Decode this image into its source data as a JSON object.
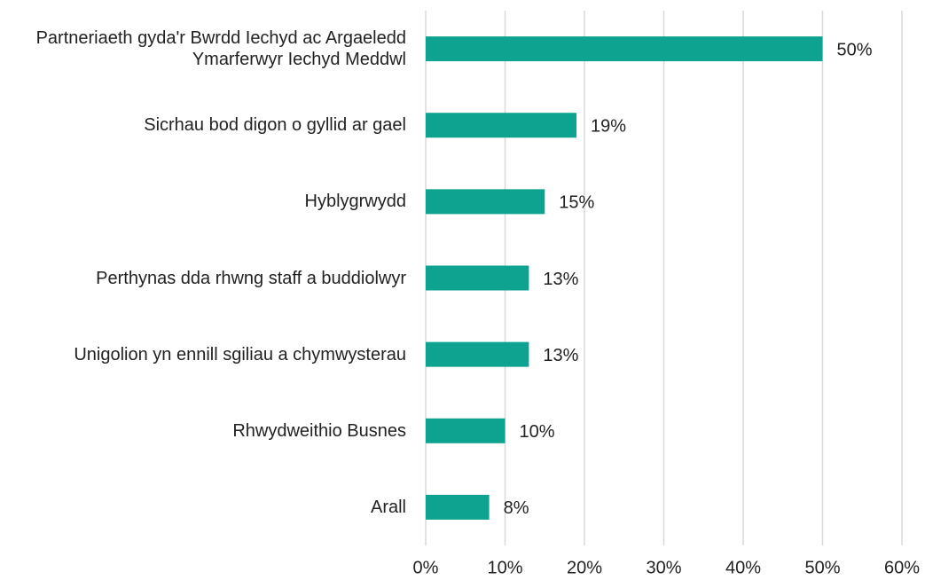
{
  "chart_data": {
    "type": "barh",
    "categories": [
      "Partneriaeth gyda'r Bwrdd Iechyd ac Argaeledd Ymarferwyr Iechyd Meddwl",
      "Sicrhau bod digon o gyllid ar gael",
      "Hyblygrwydd",
      "Perthynas dda rhwng staff a buddiolwyr",
      "Unigolion yn ennill sgiliau a chymwysterau",
      "Rhwydweithio Busnes",
      "Arall"
    ],
    "values": [
      50,
      19,
      15,
      13,
      13,
      10,
      8
    ],
    "value_labels": [
      "50%",
      "19%",
      "15%",
      "13%",
      "13%",
      "10%",
      "8%"
    ],
    "color": "#0ea390",
    "xlim": [
      0,
      60
    ],
    "xticks": [
      {
        "value": 0,
        "label": "0%"
      },
      {
        "value": 10,
        "label": "10%"
      },
      {
        "value": 20,
        "label": "20%"
      },
      {
        "value": 30,
        "label": "30%"
      },
      {
        "value": 40,
        "label": "40%"
      },
      {
        "value": 50,
        "label": "50%"
      },
      {
        "value": 60,
        "label": "60%"
      }
    ],
    "grid": true
  }
}
